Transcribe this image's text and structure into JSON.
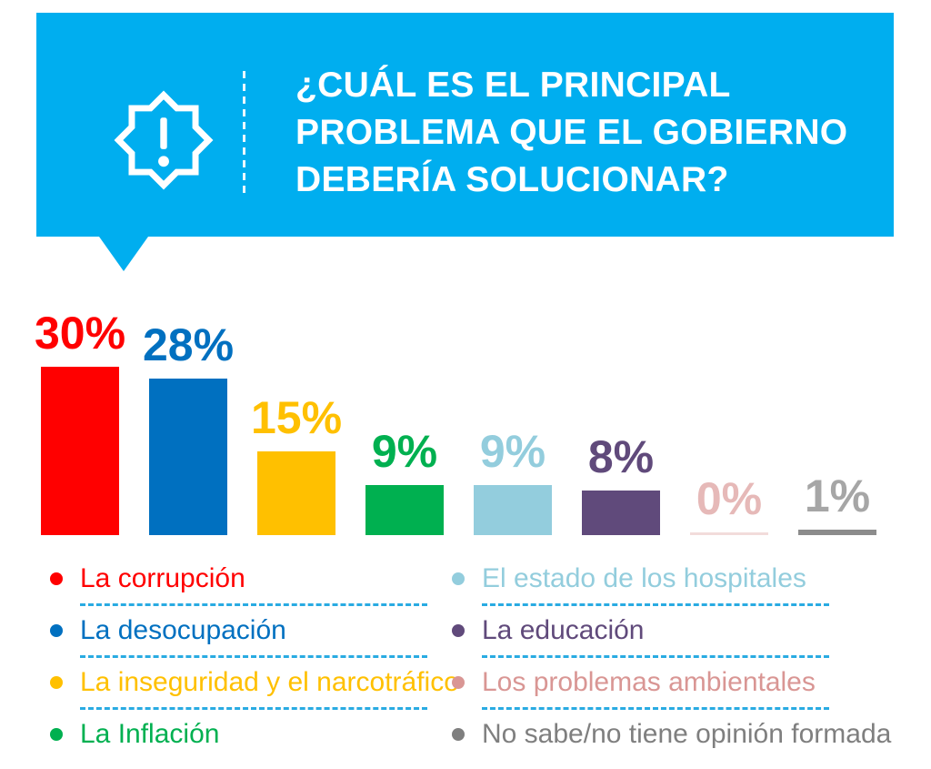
{
  "header": {
    "title_lines": [
      "¿CUÁL ES EL PRINCIPAL",
      "PROBLEMA QUE EL GOBIERNO",
      "DEBERÍA SOLUCIONAR?"
    ],
    "title_full": "¿CUÁL ES EL PRINCIPAL PROBLEMA QUE EL GOBIERNO DEBERÍA SOLUCIONAR?",
    "icon": "alert-badge-icon",
    "background_color": "#00AEEF",
    "text_color": "#FFFFFF"
  },
  "chart_data": {
    "type": "bar",
    "title": "¿Cuál es el principal problema que el gobierno debería solucionar?",
    "unit": "%",
    "categories": [
      "La corrupción",
      "La desocupación",
      "La inseguridad y el narcotráfico",
      "La Inflación",
      "El estado de los hospitales",
      "La educación",
      "Los problemas ambientales",
      "No sabe/no tiene opinión formada"
    ],
    "values": [
      30,
      28,
      15,
      9,
      9,
      8,
      0,
      1
    ],
    "value_labels": [
      "30%",
      "28%",
      "15%",
      "9%",
      "9%",
      "8%",
      "0%",
      "1%"
    ],
    "bar_colors": [
      "#FF0000",
      "#0070C0",
      "#FFC000",
      "#00B050",
      "#93CDDD",
      "#604A7B",
      "#F2DCDB",
      "#8C8C8C"
    ],
    "label_colors": [
      "#FF0000",
      "#0070C0",
      "#FFC000",
      "#00B050",
      "#93CDDD",
      "#604A7B",
      "#E6B9B8",
      "#A6A6A6"
    ],
    "ylim": [
      0,
      30
    ],
    "grid": false,
    "axes_shown": false,
    "legend_position": "bottom"
  },
  "legend": {
    "separator_color": "#29ABE2",
    "columns": [
      {
        "items": [
          {
            "label": "La corrupción",
            "color": "#FF0000"
          },
          {
            "label": "La desocupación",
            "color": "#0070C0"
          },
          {
            "label": "La inseguridad y el narcotráfico",
            "color": "#FFC000"
          },
          {
            "label": "La Inflación",
            "color": "#00B050"
          }
        ]
      },
      {
        "items": [
          {
            "label": "El estado de los hospitales",
            "color": "#93CDDD"
          },
          {
            "label": "La educación",
            "color": "#604A7B"
          },
          {
            "label": "Los problemas ambientales",
            "color": "#D99694"
          },
          {
            "label": "No sabe/no tiene opinión formada",
            "color": "#7F7F7F"
          }
        ]
      }
    ]
  }
}
